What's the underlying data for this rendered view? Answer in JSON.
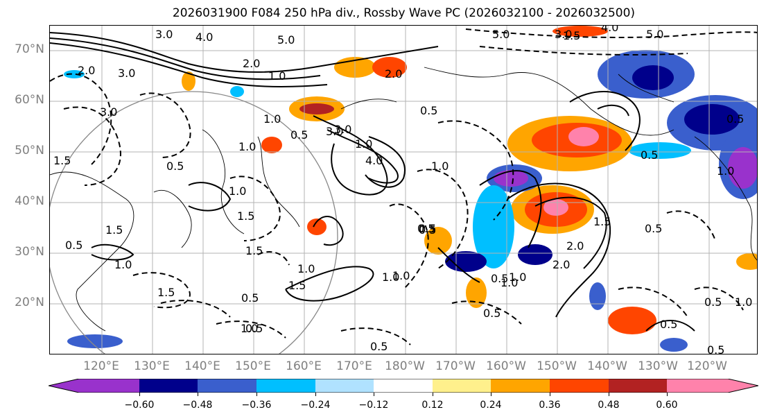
{
  "title": "2026031900 F084 250 hPa div., Rossby Wave PC (2026032100 - 2026032500)",
  "lat_labels": [
    "70°N",
    "60°N",
    "50°N",
    "40°N",
    "30°N",
    "20°N"
  ],
  "lon_labels": [
    "120°E",
    "130°E",
    "140°E",
    "150°E",
    "160°E",
    "170°E",
    "180°W",
    "170°W",
    "160°W",
    "150°W",
    "140°W",
    "130°W",
    "120°W"
  ],
  "colorbar": {
    "colors": [
      "#9932cc",
      "#00008b",
      "#3a5fcd",
      "#00bfff",
      "#b0e2ff",
      "#ffffff",
      "#fff08c",
      "#ffa500",
      "#ff4500",
      "#b22222",
      "#ff82ab"
    ],
    "tick_labels": [
      "−0.60",
      "−0.48",
      "−0.36",
      "−0.24",
      "−0.12",
      "0.12",
      "0.24",
      "0.36",
      "0.48",
      "0.60"
    ]
  },
  "contour_labels": [
    "3.0",
    "4.0",
    "5.0",
    "2.0",
    "1.0",
    "5.0",
    "5.0",
    "3.0",
    "4.0",
    "3.0",
    "2.0",
    "1.0",
    "3.0",
    "1.5",
    "3.0",
    "0.5",
    "2.0",
    "1.5",
    "0.5",
    "1.0",
    "0.5",
    "3.0",
    "1.0",
    "4.0",
    "1.0",
    "0.5",
    "1.5",
    "0.5",
    "1.0",
    "1.0",
    "0.5",
    "0.5",
    "1.0",
    "1.5",
    "1.5",
    "0.5",
    "1.0",
    "1.5",
    "0.5",
    "1.5",
    "1.0",
    "0.5",
    "2.0",
    "1.0",
    "0.5",
    "0.5",
    "1.0",
    "0.5",
    "1.0",
    "0.5",
    "1.5",
    "1.0",
    "0.5",
    "0.5",
    "2.0",
    "0.5",
    "1.0",
    "0.5"
  ]
}
